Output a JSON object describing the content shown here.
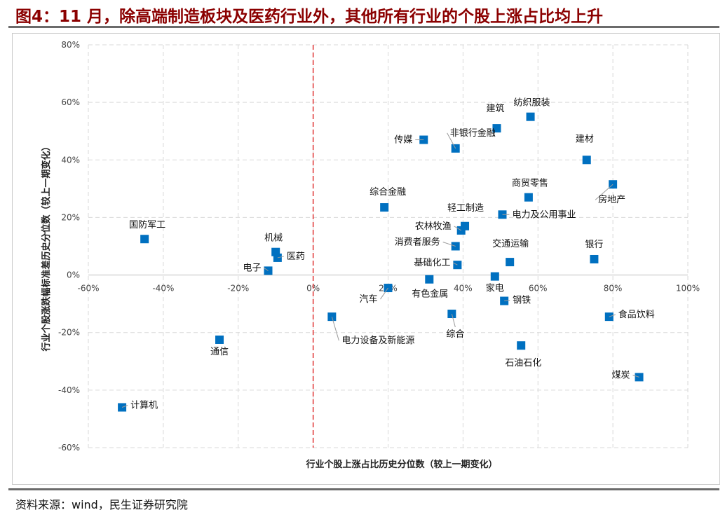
{
  "title": "图4：11 月，除高端制造板块及医药行业外，其他所有行业的个股上涨占比均上升",
  "source": "资料来源：wind，民生证券研究院",
  "colors": {
    "marker": "#0070c0",
    "zero_line": "#e03030",
    "grid": "#d9d9d9",
    "title": "#8b0000"
  },
  "chart_data": {
    "type": "scatter",
    "title": "图4：11 月，除高端制造板块及医药行业外，其他所有行业的个股上涨占比均上升",
    "xlabel": "行业个股上涨占比历史分位数（较上一期变化）",
    "ylabel": "行业个股涨跌幅标准差历史分位数（较上一期变化）",
    "xlim": [
      -60,
      100
    ],
    "ylim": [
      -60,
      80
    ],
    "x_ticks": [
      -60,
      -40,
      -20,
      0,
      20,
      40,
      60,
      80,
      100
    ],
    "y_ticks": [
      -60,
      -40,
      -20,
      0,
      20,
      40,
      60,
      80
    ],
    "x_tick_labels": [
      "-60%",
      "-40%",
      "-20%",
      "0%",
      "20%",
      "40%",
      "60%",
      "80%",
      "100%"
    ],
    "y_tick_labels": [
      "-60%",
      "-40%",
      "-20%",
      "0%",
      "20%",
      "40%",
      "60%",
      "80%"
    ],
    "grid": true,
    "reference_line_x": 0,
    "points": [
      {
        "label": "纺织服装",
        "x": 58.0,
        "y": 55.0
      },
      {
        "label": "建筑",
        "x": 49.0,
        "y": 51.0
      },
      {
        "label": "传媒",
        "x": 29.5,
        "y": 47.0
      },
      {
        "label": "非银行金融",
        "x": 38.0,
        "y": 44.0
      },
      {
        "label": "建材",
        "x": 73.0,
        "y": 40.0
      },
      {
        "label": "房地产",
        "x": 80.0,
        "y": 31.5
      },
      {
        "label": "商贸零售",
        "x": 57.5,
        "y": 27.0
      },
      {
        "label": "综合金融",
        "x": 19.0,
        "y": 23.5
      },
      {
        "label": "轻工制造",
        "x": 40.5,
        "y": 17.0
      },
      {
        "label": "电力及公用事业",
        "x": 50.5,
        "y": 21.0
      },
      {
        "label": "农林牧渔",
        "x": 39.5,
        "y": 15.5
      },
      {
        "label": "国防军工",
        "x": -45.0,
        "y": 12.5
      },
      {
        "label": "消费者服务",
        "x": 38.0,
        "y": 10.0
      },
      {
        "label": "机械",
        "x": -10.0,
        "y": 8.0
      },
      {
        "label": "医药",
        "x": -9.5,
        "y": 6.0
      },
      {
        "label": "银行",
        "x": 75.0,
        "y": 5.5
      },
      {
        "label": "交通运输",
        "x": 52.5,
        "y": 4.5
      },
      {
        "label": "基础化工",
        "x": 38.5,
        "y": 3.5
      },
      {
        "label": "电子",
        "x": -12.0,
        "y": 1.5
      },
      {
        "label": "家电",
        "x": 48.5,
        "y": -0.5
      },
      {
        "label": "有色金属",
        "x": 31.0,
        "y": -1.5
      },
      {
        "label": "汽车",
        "x": 20.0,
        "y": -4.5
      },
      {
        "label": "钢铁",
        "x": 51.0,
        "y": -9.0
      },
      {
        "label": "综合",
        "x": 37.0,
        "y": -13.5
      },
      {
        "label": "食品饮料",
        "x": 79.0,
        "y": -14.5
      },
      {
        "label": "电力设备及新能源",
        "x": 5.0,
        "y": -14.5
      },
      {
        "label": "通信",
        "x": -25.0,
        "y": -22.5
      },
      {
        "label": "石油石化",
        "x": 55.5,
        "y": -24.5
      },
      {
        "label": "煤炭",
        "x": 87.0,
        "y": -35.5
      },
      {
        "label": "计算机",
        "x": -51.0,
        "y": -46.0
      }
    ]
  }
}
